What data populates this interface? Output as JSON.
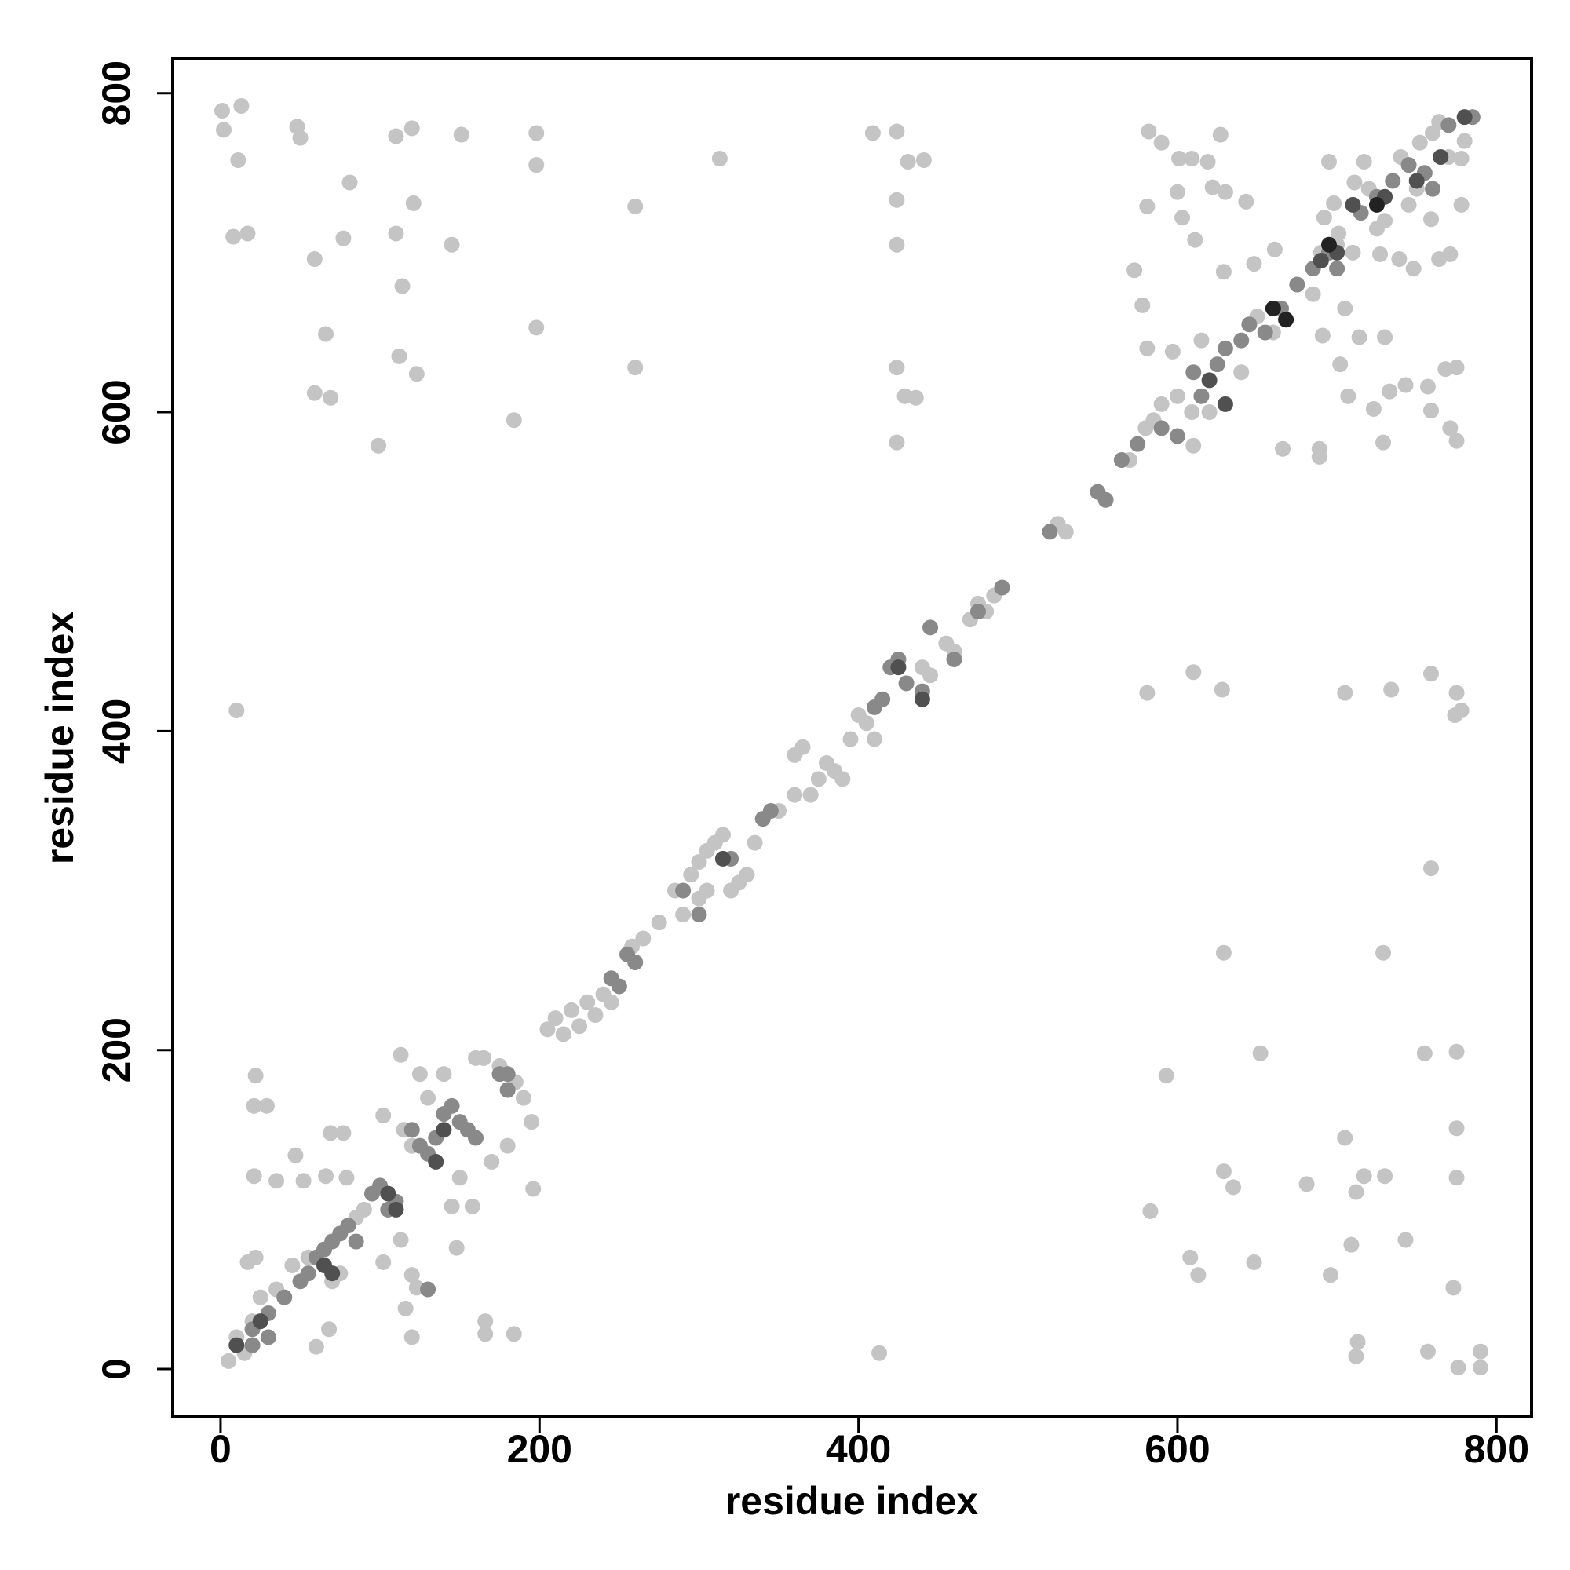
{
  "chart_data": {
    "type": "scatter",
    "xlabel": "residue index",
    "ylabel": "residue index",
    "xlim": [
      -30,
      822
    ],
    "ylim": [
      -30,
      822
    ],
    "xticks": [
      0,
      200,
      400,
      600,
      800
    ],
    "yticks": [
      0,
      200,
      400,
      600,
      800
    ],
    "series": [
      {
        "color": "#c4c4c4",
        "x": [
          1,
          13,
          2,
          11,
          8,
          17,
          48,
          50,
          81,
          77,
          59,
          66,
          59,
          69,
          99,
          110,
          120,
          110,
          121,
          114,
          112,
          123,
          145,
          151,
          198,
          198,
          198,
          184,
          260,
          260,
          313,
          409,
          424,
          424,
          424,
          424,
          424,
          429,
          436,
          431,
          441,
          10,
          413,
          583,
          593,
          608,
          613,
          629,
          635,
          629,
          652,
          648,
          681,
          696,
          705,
          709,
          712,
          717,
          730,
          729,
          743,
          712,
          713,
          755,
          757,
          759,
          775,
          775,
          775,
          773,
          776,
          790,
          790,
          581,
          610,
          628,
          705,
          734,
          759,
          775,
          778,
          774,
          22,
          21,
          35,
          47,
          52,
          66,
          79,
          69,
          77,
          102,
          102,
          113,
          120,
          123,
          116,
          120,
          68,
          60,
          17,
          22,
          145,
          158,
          148,
          166,
          166,
          184,
          196,
          21,
          29,
          113,
          582,
          590,
          601,
          609,
          619,
          627,
          603,
          611,
          600,
          622,
          630,
          643,
          581,
          573,
          578,
          581,
          597,
          610,
          609,
          629,
          648,
          661,
          666,
          689,
          689,
          685,
          691,
          705,
          702,
          714,
          707,
          723,
          729,
          730,
          733,
          743,
          757,
          768,
          775,
          775,
          771,
          759,
          764,
          771,
          778,
          778,
          759,
          739,
          748,
          698,
          711,
          717,
          695,
          701,
          692,
          727,
          752,
          764,
          205,
          210,
          215,
          220,
          225,
          230,
          235,
          240,
          245,
          258,
          265,
          275,
          285,
          290,
          295,
          300,
          305,
          310,
          315,
          320,
          325,
          330,
          335,
          300,
          305,
          360,
          365,
          370,
          375,
          380,
          385,
          390,
          395,
          400,
          405,
          410,
          360,
          350,
          440,
          445,
          455,
          460,
          470,
          475,
          480,
          485,
          165,
          175,
          185,
          190,
          195,
          180,
          170,
          150,
          160,
          140,
          125,
          130,
          115,
          120,
          25,
          35,
          45,
          55,
          70,
          75,
          85,
          90,
          20,
          10,
          5,
          15,
          580,
          585,
          590,
          600,
          570,
          525,
          530,
          615,
          620,
          640,
          650,
          660,
          700,
          710,
          720,
          730,
          740,
          750,
          760,
          770,
          780,
          745,
          725,
          690
        ],
        "y": [
          789,
          792,
          777,
          758,
          710,
          712,
          779,
          772,
          744,
          709,
          696,
          649,
          612,
          609,
          579,
          773,
          778,
          712,
          731,
          679,
          635,
          624,
          705,
          774,
          775,
          755,
          653,
          595,
          729,
          628,
          759,
          775,
          776,
          733,
          705,
          628,
          581,
          610,
          609,
          757,
          758,
          413,
          10,
          99,
          184,
          70,
          59,
          124,
          114,
          261,
          198,
          67,
          116,
          59,
          145,
          78,
          111,
          121,
          121,
          261,
          81,
          8,
          17,
          198,
          11,
          314,
          199,
          151,
          120,
          51,
          1,
          1,
          11,
          424,
          437,
          426,
          424,
          426,
          436,
          424,
          413,
          410,
          184,
          121,
          118,
          134,
          118,
          121,
          120,
          148,
          148,
          159,
          67,
          81,
          59,
          51,
          38,
          20,
          25,
          14,
          67,
          70,
          102,
          102,
          76,
          30,
          22,
          22,
          113,
          165,
          165,
          197,
          776,
          769,
          759,
          759,
          757,
          774,
          722,
          708,
          738,
          741,
          738,
          732,
          729,
          689,
          667,
          640,
          638,
          579,
          600,
          688,
          693,
          702,
          577,
          577,
          572,
          674,
          648,
          665,
          630,
          647,
          610,
          602,
          581,
          647,
          613,
          617,
          616,
          627,
          628,
          582,
          590,
          601,
          696,
          699,
          759,
          730,
          721,
          696,
          690,
          731,
          744,
          757,
          757,
          712,
          722,
          699,
          769,
          782,
          213,
          220,
          210,
          225,
          215,
          230,
          222,
          235,
          230,
          265,
          270,
          280,
          300,
          285,
          310,
          318,
          325,
          330,
          335,
          300,
          305,
          310,
          330,
          295,
          300,
          385,
          390,
          360,
          370,
          380,
          375,
          370,
          395,
          410,
          405,
          395,
          360,
          350,
          440,
          435,
          455,
          450,
          470,
          480,
          475,
          485,
          195,
          190,
          180,
          170,
          155,
          140,
          130,
          120,
          195,
          185,
          185,
          170,
          150,
          140,
          45,
          50,
          65,
          70,
          55,
          60,
          95,
          100,
          30,
          20,
          5,
          10,
          590,
          595,
          605,
          610,
          570,
          530,
          525,
          645,
          600,
          625,
          660,
          650,
          705,
          700,
          740,
          720,
          760,
          740,
          775,
          760,
          770,
          730,
          715,
          700
        ]
      },
      {
        "color": "#898989",
        "x": [
          20,
          30,
          40,
          50,
          55,
          60,
          65,
          70,
          75,
          80,
          85,
          95,
          100,
          105,
          110,
          120,
          125,
          130,
          135,
          140,
          145,
          150,
          155,
          160,
          175,
          180,
          245,
          250,
          255,
          260,
          290,
          300,
          320,
          340,
          345,
          410,
          415,
          420,
          425,
          430,
          440,
          445,
          460,
          475,
          490,
          520,
          550,
          555,
          565,
          575,
          590,
          600,
          610,
          615,
          625,
          630,
          640,
          645,
          655,
          665,
          675,
          685,
          695,
          700,
          715,
          725,
          735,
          745,
          755,
          760,
          770,
          785,
          20,
          30,
          130,
          180
        ],
        "y": [
          25,
          35,
          45,
          55,
          60,
          70,
          75,
          80,
          85,
          90,
          80,
          110,
          115,
          100,
          105,
          150,
          140,
          135,
          145,
          160,
          165,
          155,
          150,
          145,
          185,
          175,
          245,
          240,
          260,
          255,
          300,
          285,
          320,
          345,
          350,
          415,
          420,
          440,
          445,
          430,
          425,
          465,
          445,
          475,
          490,
          525,
          550,
          545,
          570,
          580,
          590,
          585,
          625,
          610,
          630,
          640,
          645,
          655,
          650,
          665,
          680,
          690,
          700,
          690,
          725,
          735,
          745,
          755,
          750,
          740,
          780,
          785,
          15,
          20,
          50,
          185
        ]
      },
      {
        "color": "#505050",
        "x": [
          10,
          25,
          65,
          70,
          105,
          110,
          135,
          140,
          315,
          425,
          440,
          620,
          630,
          690,
          700,
          710,
          730,
          750,
          765,
          780
        ],
        "y": [
          15,
          30,
          65,
          60,
          110,
          100,
          130,
          150,
          320,
          440,
          420,
          620,
          605,
          695,
          700,
          730,
          735,
          745,
          760,
          785
        ]
      },
      {
        "color": "#222222",
        "x": [
          660,
          668,
          695,
          725
        ],
        "y": [
          665,
          658,
          705,
          730
        ]
      }
    ]
  }
}
